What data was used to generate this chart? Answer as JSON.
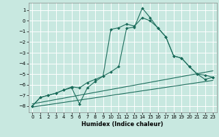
{
  "xlabel": "Humidex (Indice chaleur)",
  "background_color": "#c8e8e0",
  "grid_color": "#ffffff",
  "line_color": "#1a6b5a",
  "xlim": [
    -0.5,
    23.5
  ],
  "ylim": [
    -8.6,
    1.7
  ],
  "xticks": [
    0,
    1,
    2,
    3,
    4,
    5,
    6,
    7,
    8,
    9,
    10,
    11,
    12,
    13,
    14,
    15,
    16,
    17,
    18,
    19,
    20,
    21,
    22,
    23
  ],
  "yticks": [
    1,
    0,
    -1,
    -2,
    -3,
    -4,
    -5,
    -6,
    -7,
    -8
  ],
  "line1_x": [
    0,
    1,
    2,
    3,
    4,
    5,
    6,
    7,
    8,
    9,
    10,
    11,
    12,
    13,
    14,
    15,
    16,
    17,
    18,
    19,
    20,
    21,
    22,
    23
  ],
  "line1_y": [
    -8.0,
    -7.2,
    -7.0,
    -6.8,
    -6.5,
    -6.2,
    -6.3,
    -5.8,
    -5.5,
    -5.2,
    -4.8,
    -4.3,
    -0.7,
    -0.6,
    1.2,
    0.3,
    -0.7,
    -1.5,
    -3.3,
    -3.5,
    -4.3,
    -5.0,
    -5.1,
    -5.3
  ],
  "line2_x": [
    0,
    1,
    2,
    3,
    4,
    5,
    6,
    7,
    8,
    9,
    10,
    11,
    12,
    13,
    14,
    15,
    16,
    17,
    18,
    19,
    20,
    21,
    22,
    23
  ],
  "line2_y": [
    -8.0,
    -7.2,
    -7.0,
    -6.8,
    -6.5,
    -6.3,
    -7.8,
    -6.3,
    -5.7,
    -5.2,
    -0.8,
    -0.65,
    -0.3,
    -0.5,
    0.3,
    0.0,
    -0.65,
    -1.5,
    -3.3,
    -3.5,
    -4.3,
    -5.0,
    -5.5,
    -5.3
  ],
  "line3_x": [
    0,
    23
  ],
  "line3_y": [
    -7.8,
    -4.7
  ],
  "line4_x": [
    0,
    23
  ],
  "line4_y": [
    -8.1,
    -5.6
  ]
}
